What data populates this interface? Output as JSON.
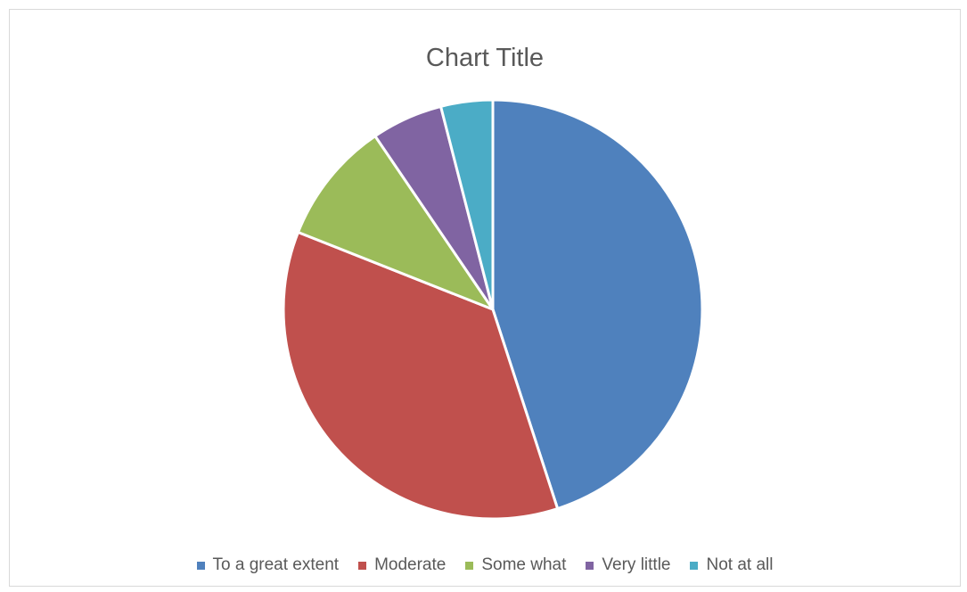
{
  "chart_data": {
    "type": "pie",
    "title": "Chart Title",
    "categories": [
      "To a great extent",
      "Moderate",
      "Some what",
      "Very little",
      "Not at all"
    ],
    "values": [
      45,
      36,
      9.5,
      5.5,
      4
    ],
    "colors": [
      "#4F81BD",
      "#C0504D",
      "#9BBB59",
      "#8064A2",
      "#4BACC6"
    ],
    "legend_position": "bottom"
  }
}
